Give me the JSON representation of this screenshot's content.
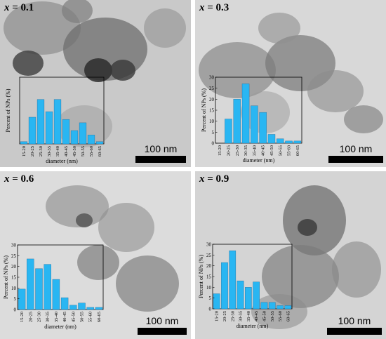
{
  "colors": {
    "bar": "#29b6f2",
    "bar_edge": "#1f6ea0"
  },
  "scale_label": "100 nm",
  "chart_data": [
    {
      "type": "bar",
      "label_prefix": "x",
      "label_value": "= 0.1",
      "xlabel": "diameter (nm)",
      "ylabel": "Percent of NPs (%)",
      "categories": [
        "15-20",
        "20-25",
        "25-30",
        "30-35",
        "35-40",
        "40-45",
        "45-50",
        "50-55",
        "55-60",
        "60-65"
      ],
      "values": [
        1,
        12,
        20,
        14.5,
        20,
        11,
        6,
        9.5,
        4,
        1
      ],
      "ylim": [
        0,
        30
      ],
      "yticks": []
    },
    {
      "type": "bar",
      "label_prefix": "x",
      "label_value": "= 0.3",
      "xlabel": "diameter (nm)",
      "ylabel": "Percent of NPs (%)",
      "categories": [
        "15-20",
        "20-25",
        "25-30",
        "30-35",
        "35-40",
        "40-45",
        "45-50",
        "50-55",
        "55-60",
        "60-65"
      ],
      "values": [
        0,
        11,
        20,
        27,
        17,
        14,
        4,
        2,
        1,
        1
      ],
      "ylim": [
        0,
        30
      ],
      "yticks": [
        "0",
        "5",
        "10",
        "15",
        "20",
        "25",
        "30"
      ]
    },
    {
      "type": "bar",
      "label_prefix": "x",
      "label_value": "= 0.6",
      "xlabel": "diameter (nm)",
      "ylabel": "Percent of NPs (%)",
      "categories": [
        "15-20",
        "20-25",
        "25-30",
        "30-35",
        "35-40",
        "40-45",
        "45-50",
        "50-55",
        "55-60",
        "60-65"
      ],
      "values": [
        9.5,
        23.5,
        19,
        21,
        14,
        5.5,
        2,
        3,
        1,
        1
      ],
      "ylim": [
        0,
        30
      ],
      "yticks": [
        "0",
        "5",
        "10",
        "15",
        "20",
        "25",
        "30"
      ]
    },
    {
      "type": "bar",
      "label_prefix": "x",
      "label_value": "= 0.9",
      "xlabel": "diameter (nm)",
      "ylabel": "Percent of NPs (%)",
      "categories": [
        "15-20",
        "20-25",
        "25-30",
        "30-35",
        "35-40",
        "40-45",
        "45-50",
        "50-55",
        "55-60",
        "60-65"
      ],
      "values": [
        7,
        21.5,
        27,
        13,
        10,
        12.5,
        3,
        3,
        1.5,
        1.5
      ],
      "ylim": [
        0,
        30
      ],
      "yticks": [
        "0",
        "5",
        "10",
        "15",
        "20",
        "25",
        "30"
      ]
    }
  ]
}
